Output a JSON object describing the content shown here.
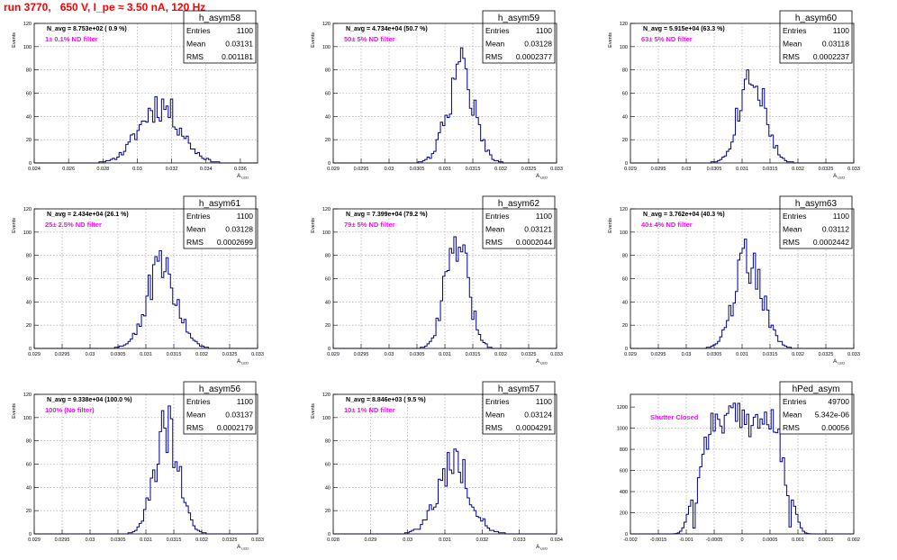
{
  "run_title": "run 3770,   650 V, I_pe ≈ 3.50 nA, 120 Hz",
  "stats_labels": {
    "entries": "Entries",
    "mean": "Mean",
    "rms": "RMS"
  },
  "colors": {
    "hist_line": "#00008b",
    "filter_text": "#ff00ff",
    "title_red": "#ff0000",
    "grid": "#999999"
  },
  "chart_data": [
    {
      "type": "histogram",
      "hist_name": "h_asym58",
      "navg": "N_avg = 8.753e+02 ( 0.9 %)",
      "filter_label": "1± 0.1% ND filter",
      "entries": "1100",
      "mean": "0.03131",
      "rms": "0.001181",
      "xlabel": "A_LED",
      "ylabel": "Events",
      "xlim": [
        0.024,
        0.037
      ],
      "ylim": [
        0,
        120
      ],
      "xticks": [
        "0.024",
        "0.026",
        "0.028",
        "0.03",
        "0.032",
        "0.034",
        "0.036"
      ],
      "yticks": [
        "0",
        "20",
        "40",
        "60",
        "80",
        "100",
        "120"
      ],
      "gauss": {
        "mean": 0.03131,
        "sigma": 0.00118,
        "peak": 50,
        "bins": 100,
        "seed": 11
      }
    },
    {
      "type": "histogram",
      "hist_name": "h_asym59",
      "navg": "N_avg = 4.734e+04 (50.7 %)",
      "filter_label": "50± 5% ND filter",
      "entries": "1100",
      "mean": "0.03128",
      "rms": "0.0002377",
      "xlabel": "A_LED",
      "ylabel": "Events",
      "xlim": [
        0.029,
        0.033
      ],
      "ylim": [
        0,
        120
      ],
      "xticks": [
        "0.029",
        "0.0295",
        "0.03",
        "0.0305",
        "0.031",
        "0.0315",
        "0.032",
        "0.0325",
        "0.033"
      ],
      "yticks": [
        "0",
        "20",
        "40",
        "60",
        "80",
        "100",
        "120"
      ],
      "gauss": {
        "mean": 0.03128,
        "sigma": 0.000238,
        "peak": 80,
        "bins": 100,
        "seed": 22
      }
    },
    {
      "type": "histogram",
      "hist_name": "h_asym60",
      "navg": "N_avg = 5.915e+04 (63.3 %)",
      "filter_label": "63± 5% ND filter",
      "entries": "1100",
      "mean": "0.03118",
      "rms": "0.0002237",
      "xlabel": "A_LED",
      "ylabel": "Events",
      "xlim": [
        0.029,
        0.033
      ],
      "ylim": [
        0,
        120
      ],
      "xticks": [
        "0.029",
        "0.0295",
        "0.03",
        "0.0305",
        "0.031",
        "0.0315",
        "0.032",
        "0.0325",
        "0.033"
      ],
      "yticks": [
        "0",
        "20",
        "40",
        "60",
        "80",
        "100",
        "120"
      ],
      "gauss": {
        "mean": 0.03118,
        "sigma": 0.000224,
        "peak": 82,
        "bins": 100,
        "seed": 33
      }
    },
    {
      "type": "histogram",
      "hist_name": "h_asym61",
      "navg": "N_avg = 2.434e+04 (26.1 %)",
      "filter_label": "25± 2.5% ND filter",
      "entries": "1100",
      "mean": "0.03128",
      "rms": "0.0002699",
      "xlabel": "A_LED",
      "ylabel": "Events",
      "xlim": [
        0.029,
        0.033
      ],
      "ylim": [
        0,
        120
      ],
      "xticks": [
        "0.029",
        "0.0295",
        "0.03",
        "0.0305",
        "0.031",
        "0.0315",
        "0.032",
        "0.0325",
        "0.033"
      ],
      "yticks": [
        "0",
        "20",
        "40",
        "60",
        "80",
        "100",
        "120"
      ],
      "gauss": {
        "mean": 0.03128,
        "sigma": 0.00027,
        "peak": 68,
        "bins": 100,
        "seed": 44
      }
    },
    {
      "type": "histogram",
      "hist_name": "h_asym62",
      "navg": "N_avg = 7.399e+04 (79.2 %)",
      "filter_label": "79± 5% ND filter",
      "entries": "1100",
      "mean": "0.03121",
      "rms": "0.0002044",
      "xlabel": "A_LED",
      "ylabel": "Events",
      "xlim": [
        0.029,
        0.033
      ],
      "ylim": [
        0,
        120
      ],
      "xticks": [
        "0.029",
        "0.0295",
        "0.03",
        "0.0305",
        "0.031",
        "0.0315",
        "0.032",
        "0.0325",
        "0.033"
      ],
      "yticks": [
        "0",
        "20",
        "40",
        "60",
        "80",
        "100",
        "120"
      ],
      "gauss": {
        "mean": 0.03121,
        "sigma": 0.000204,
        "peak": 90,
        "bins": 100,
        "seed": 55
      }
    },
    {
      "type": "histogram",
      "hist_name": "h_asym63",
      "navg": "N_avg = 3.762e+04 (40.3 %)",
      "filter_label": "40± 4% ND filter",
      "entries": "1100",
      "mean": "0.03112",
      "rms": "0.0002442",
      "xlabel": "A_LED",
      "ylabel": "Events",
      "xlim": [
        0.029,
        0.033
      ],
      "ylim": [
        0,
        120
      ],
      "xticks": [
        "0.029",
        "0.0295",
        "0.03",
        "0.0305",
        "0.031",
        "0.0315",
        "0.032",
        "0.0325",
        "0.033"
      ],
      "yticks": [
        "0",
        "20",
        "40",
        "60",
        "80",
        "100",
        "120"
      ],
      "gauss": {
        "mean": 0.03112,
        "sigma": 0.000244,
        "peak": 78,
        "bins": 100,
        "seed": 66
      }
    },
    {
      "type": "histogram",
      "hist_name": "h_asym56",
      "navg": "N_avg = 9.338e+04 (100.0 %)",
      "filter_label": "100% (No filter)",
      "entries": "1100",
      "mean": "0.03137",
      "rms": "0.0002179",
      "xlabel": "A_LED",
      "ylabel": "Events",
      "xlim": [
        0.029,
        0.033
      ],
      "ylim": [
        0,
        120
      ],
      "xticks": [
        "0.029",
        "0.0295",
        "0.03",
        "0.0305",
        "0.031",
        "0.0315",
        "0.032",
        "0.0325",
        "0.033"
      ],
      "yticks": [
        "0",
        "20",
        "40",
        "60",
        "80",
        "100",
        "120"
      ],
      "gauss": {
        "mean": 0.03137,
        "sigma": 0.000218,
        "peak": 88,
        "bins": 100,
        "seed": 77
      }
    },
    {
      "type": "histogram",
      "hist_name": "h_asym57",
      "navg": "N_avg = 8.846e+03 ( 9.5 %)",
      "filter_label": "10± 1% ND filter",
      "entries": "1100",
      "mean": "0.03124",
      "rms": "0.0004291",
      "xlabel": "A_LED",
      "ylabel": "Events",
      "xlim": [
        0.028,
        0.034
      ],
      "ylim": [
        0,
        120
      ],
      "xticks": [
        "0.028",
        "0.029",
        "0.03",
        "0.031",
        "0.032",
        "0.033",
        "0.034"
      ],
      "yticks": [
        "0",
        "20",
        "40",
        "60",
        "80",
        "100",
        "120"
      ],
      "gauss": {
        "mean": 0.03124,
        "sigma": 0.000429,
        "peak": 62,
        "bins": 100,
        "seed": 88
      }
    },
    {
      "type": "histogram",
      "hist_name": "hPed_asym",
      "navg": "",
      "filter_label": "Shutter Closed",
      "entries": "49700",
      "mean": "5.342e-06",
      "rms": "0.00056",
      "xlabel": "",
      "ylabel": "",
      "xlim": [
        -0.002,
        0.002
      ],
      "ylim": [
        0,
        1320
      ],
      "xticks": [
        "-0.002",
        "-0.0015",
        "-0.001",
        "-0.0005",
        "0",
        "0.0005",
        "0.001",
        "0.0015",
        "0.002"
      ],
      "yticks": [
        "0",
        "200",
        "400",
        "600",
        "800",
        "1000",
        "1200"
      ],
      "gauss": {
        "mean": 0.0,
        "sigma": 0.00056,
        "peak": 1120,
        "bins": 100,
        "seed": 99,
        "flat": true
      }
    }
  ]
}
